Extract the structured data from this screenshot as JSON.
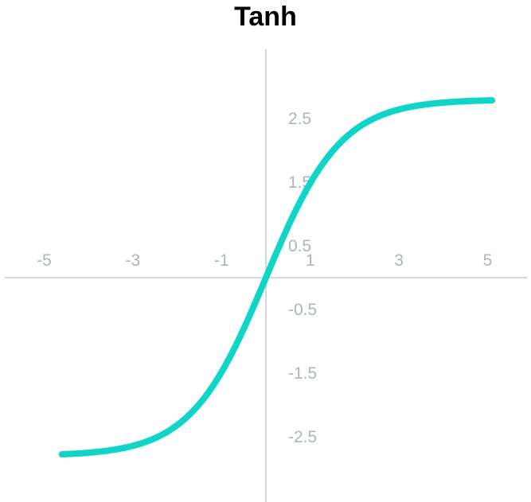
{
  "chart_data": {
    "type": "line",
    "title": "Tanh",
    "xlabel": "",
    "ylabel": "",
    "x_ticks": [
      "-5",
      "-3",
      "-1",
      "1",
      "3",
      "5"
    ],
    "y_ticks": [
      "2.5",
      "1.5",
      "0.5",
      "-0.5",
      "-1.5",
      "-2.5"
    ],
    "xlim": [
      -5.8,
      5.8
    ],
    "ylim": [
      -3.4,
      3.6
    ],
    "grid": false,
    "legend": "none",
    "series": [
      {
        "function": "tanh",
        "y_scale": 2.8,
        "x_scale": 0.59,
        "x_range": [
          -4.6,
          5.1
        ],
        "x": [
          -4.6,
          -4,
          -3,
          -2,
          -1.5,
          -1,
          -0.5,
          0,
          0.5,
          1,
          1.5,
          2,
          3,
          4,
          5.1
        ],
        "y": [
          -2.75,
          -2.73,
          -2.62,
          -2.32,
          -2.04,
          -1.63,
          -0.85,
          0,
          0.85,
          1.63,
          2.04,
          2.32,
          2.62,
          2.73,
          2.78
        ]
      }
    ],
    "colors": {
      "line": "#0fd5c7",
      "axis": "#d4d9e0",
      "tick_text": "#a6b4c6",
      "title": "#000000"
    }
  }
}
